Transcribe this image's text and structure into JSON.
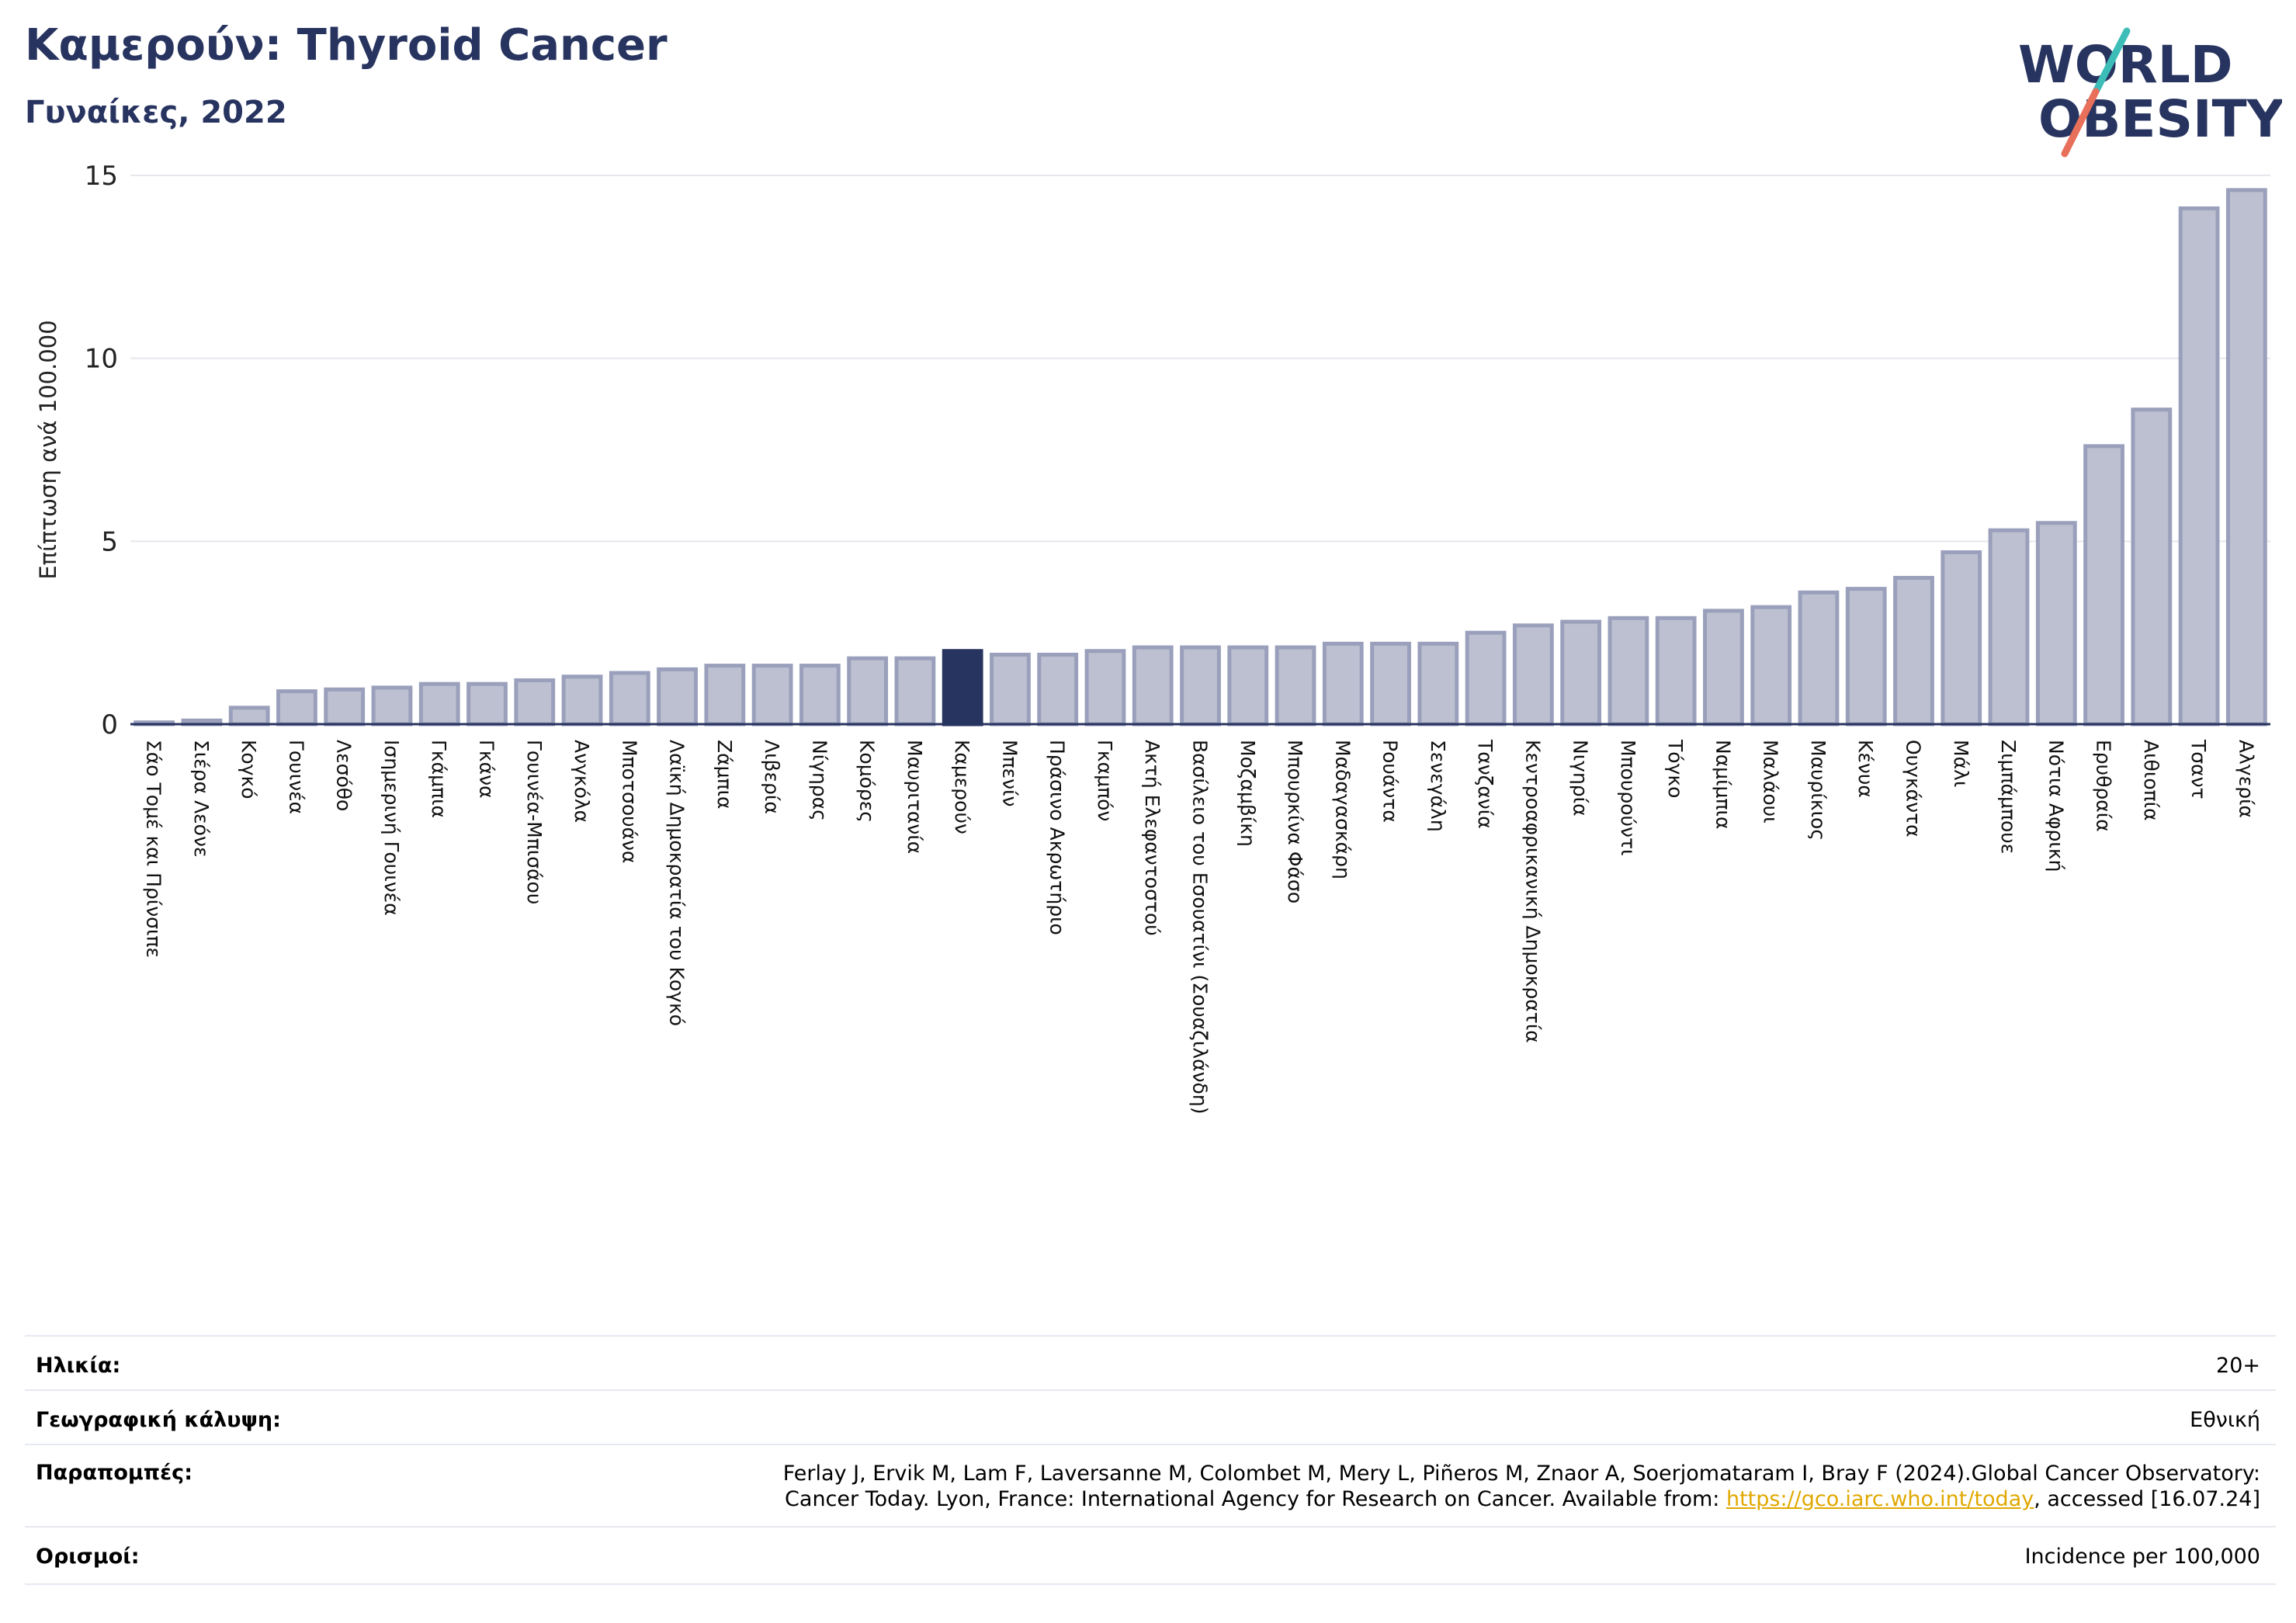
{
  "header": {
    "title": "Καμερούν: Thyroid Cancer",
    "subtitle": "Γυναίκες, 2022"
  },
  "logo": {
    "line1": "WORLD",
    "line2": "OBESITY"
  },
  "colors": {
    "primary": "#283460",
    "bar": "#bcc0d0",
    "bar_border": "#9aa0bb",
    "highlight": "#283460",
    "logo_teal": "#3dbdb8",
    "logo_coral": "#e8705a",
    "link": "#e0a800"
  },
  "chart_data": {
    "type": "bar",
    "ylabel": "Επίπτωση ανά 100.000",
    "ylim": [
      0,
      15
    ],
    "yticks": [
      0,
      5,
      10,
      15
    ],
    "grid": true,
    "highlight": "Καμερούν",
    "categories": [
      "Σάο Τομέ και Πρίνσιπε",
      "Σιέρα Λεόνε",
      "Κογκό",
      "Γουινέα",
      "Λεσόθο",
      "Ισημερινή Γουινέα",
      "Γκάμπια",
      "Γκάνα",
      "Γουινέα-Μπισάου",
      "Ανγκόλα",
      "Μποτσουάνα",
      "Λαϊκή Δημοκρατία του Κογκό",
      "Ζάμπια",
      "Λιβερία",
      "Νίγηρας",
      "Κομόρες",
      "Μαυριτανία",
      "Καμερούν",
      "Μπενίν",
      "Πράσινο Ακρωτήριο",
      "Γκαμπόν",
      "Ακτή Ελεφαντοστού",
      "Βασίλειο του Εσουατίνι (Σουαζιλάνδη)",
      "Μοζαμβίκη",
      "Μπουρκίνα Φάσο",
      "Μαδαγασκάρη",
      "Ρουάντα",
      "Σενεγάλη",
      "Τανζανία",
      "Κεντροαφρικανική Δημοκρατία",
      "Νιγηρία",
      "Μπουρούντι",
      "Τόγκο",
      "Ναμίμπια",
      "Μαλάουι",
      "Μαυρίκιος",
      "Κένυα",
      "Ουγκάντα",
      "Μάλι",
      "Ζιμπάμπουε",
      "Νότια Αφρική",
      "Ερυθραία",
      "Αιθιοπία",
      "Τσαντ",
      "Αλγερία"
    ],
    "values": [
      0.05,
      0.1,
      0.45,
      0.9,
      0.95,
      1.0,
      1.1,
      1.1,
      1.2,
      1.3,
      1.4,
      1.5,
      1.6,
      1.6,
      1.6,
      1.8,
      1.8,
      2.0,
      1.9,
      1.9,
      2.0,
      2.1,
      2.1,
      2.1,
      2.1,
      2.2,
      2.2,
      2.2,
      2.5,
      2.7,
      2.8,
      2.9,
      2.9,
      3.1,
      3.2,
      3.6,
      3.7,
      4.0,
      4.7,
      5.3,
      5.5,
      7.6,
      8.6,
      14.1,
      14.6
    ]
  },
  "info": {
    "age_label": "Ηλικία:",
    "age_value": "20+",
    "coverage_label": "Γεωγραφική κάλυψη:",
    "coverage_value": "Εθνική",
    "references_label": "Παραπομπές:",
    "references_line1": "Ferlay J, Ervik M, Lam F, Laversanne M, Colombet M, Mery L, Piñeros M, Znaor A, Soerjomataram I, Bray F (2024).Global Cancer Observatory:",
    "references_line2_pre": "Cancer Today. Lyon, France: International Agency for Research on Cancer. Available from: ",
    "references_link": "https://gco.iarc.who.int/today",
    "references_line2_post": ", accessed [16.07.24]",
    "definitions_label": "Ορισμοί:",
    "definitions_value": "Incidence per 100,000"
  }
}
